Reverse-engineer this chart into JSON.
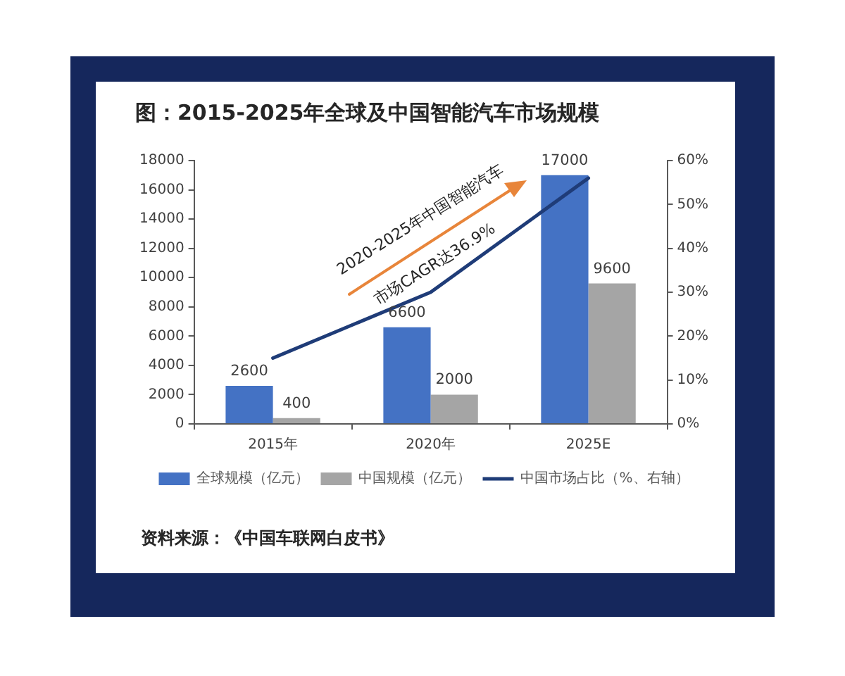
{
  "chart_data": {
    "type": "bar",
    "title": "图：2015-2025年全球及中国智能汽车市场规模",
    "categories": [
      "2015年",
      "2020年",
      "2025E"
    ],
    "series": [
      {
        "name": "全球规模（亿元）",
        "color": "#4472c4",
        "values": [
          2600,
          6600,
          17000
        ],
        "value_labels": [
          "2600",
          "6600",
          "17000"
        ]
      },
      {
        "name": "中国规模（亿元）",
        "color": "#a5a5a5",
        "values": [
          400,
          2000,
          9600
        ],
        "value_labels": [
          "400",
          "2000",
          "9600"
        ]
      },
      {
        "name": "中国市场占比（%、右轴）",
        "type": "line",
        "axis": "y2",
        "color": "#1f3c78",
        "values": [
          15,
          30,
          56
        ]
      }
    ],
    "ylim": [
      0,
      18000
    ],
    "yticks": [
      0,
      2000,
      4000,
      6000,
      8000,
      10000,
      12000,
      14000,
      16000,
      18000
    ],
    "y2lim": [
      0,
      60
    ],
    "y2ticks": [
      {
        "value": 0,
        "label": "0%"
      },
      {
        "value": 10,
        "label": "10%"
      },
      {
        "value": 20,
        "label": "20%"
      },
      {
        "value": 30,
        "label": "30%"
      },
      {
        "value": 40,
        "label": "40%"
      },
      {
        "value": 50,
        "label": "50%"
      },
      {
        "value": 60,
        "label": "60%"
      }
    ],
    "legend": "bottom",
    "marker": "none",
    "annotations": [
      "2020-2025年中国智能汽车\n市场CAGR达36.9%",
      "资料来源：《中国车联网白皮书》"
    ]
  }
}
